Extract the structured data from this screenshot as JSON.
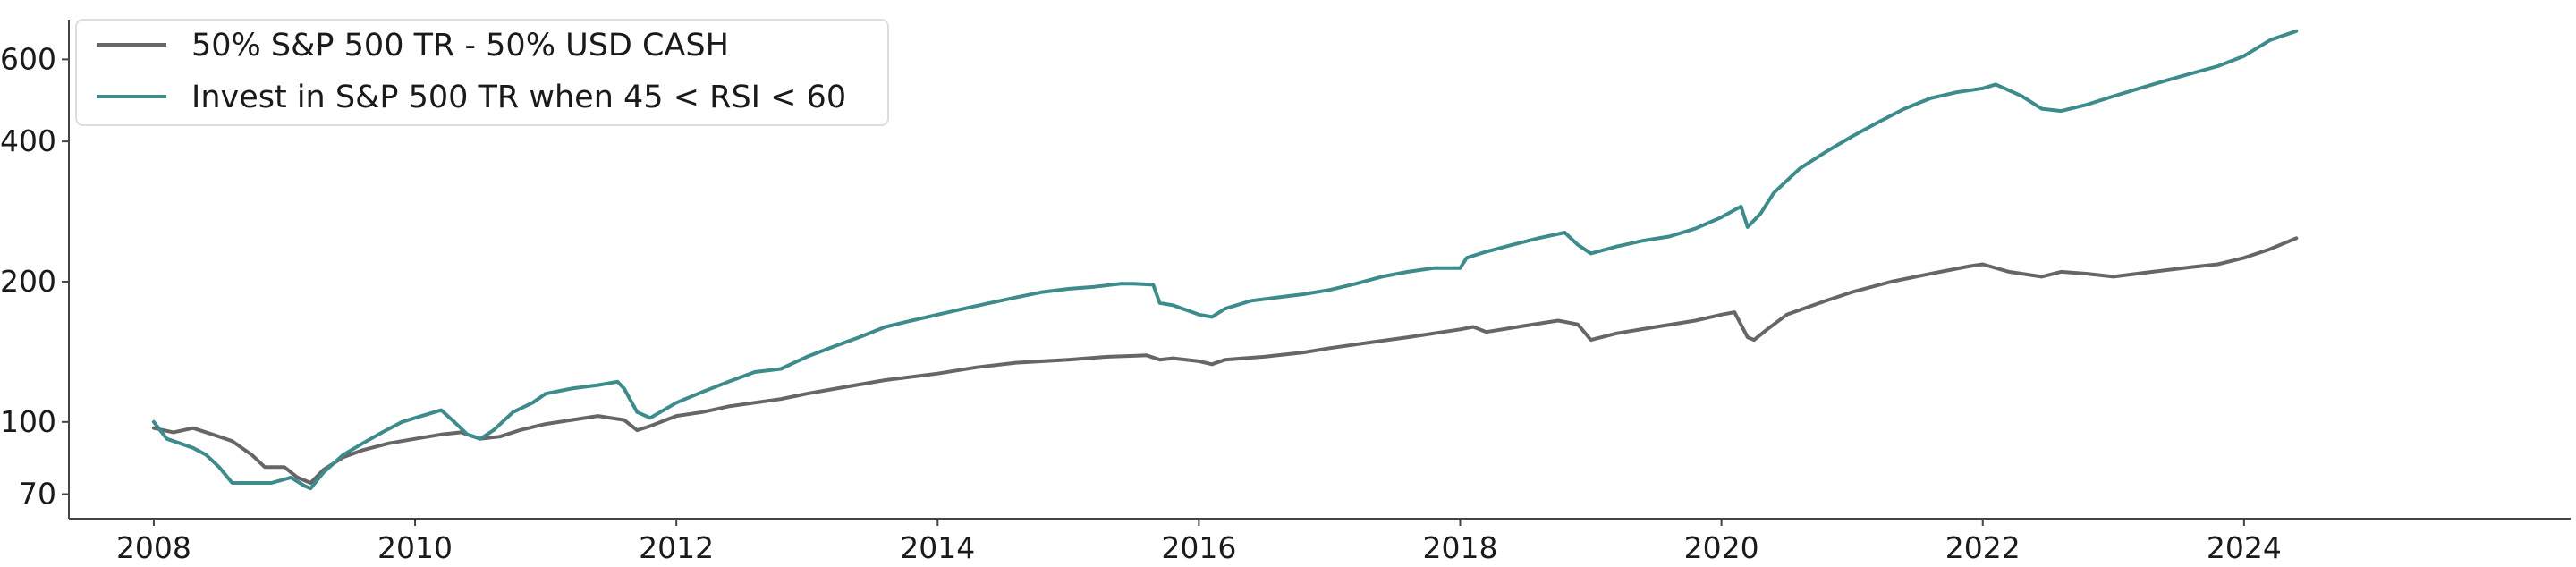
{
  "chart_data": {
    "type": "line",
    "title": "",
    "xlabel": "",
    "ylabel": "",
    "y_scale": "log",
    "xlim": [
      2007.35,
      2026.5
    ],
    "ylim": [
      62,
      730
    ],
    "grid": false,
    "legend_position": "top-left",
    "x_ticks": [
      2008,
      2010,
      2012,
      2014,
      2016,
      2018,
      2020,
      2022,
      2024
    ],
    "x_tick_labels": [
      "2008",
      "2010",
      "2012",
      "2014",
      "2016",
      "2018",
      "2020",
      "2022",
      "2024"
    ],
    "y_ticks": [
      70,
      100,
      200,
      400,
      600
    ],
    "y_tick_labels": [
      "70",
      "100",
      "200",
      "400",
      "600"
    ],
    "series": [
      {
        "name": "50% S&P 500 TR - 50% USD CASH",
        "color": "#666666",
        "x": [
          2008.0,
          2008.15,
          2008.3,
          2008.45,
          2008.6,
          2008.75,
          2008.85,
          2009.0,
          2009.1,
          2009.2,
          2009.3,
          2009.45,
          2009.6,
          2009.8,
          2010.0,
          2010.2,
          2010.35,
          2010.5,
          2010.65,
          2010.8,
          2011.0,
          2011.2,
          2011.4,
          2011.6,
          2011.7,
          2011.8,
          2012.0,
          2012.2,
          2012.4,
          2012.6,
          2012.8,
          2013.0,
          2013.3,
          2013.6,
          2014.0,
          2014.3,
          2014.6,
          2015.0,
          2015.3,
          2015.6,
          2015.7,
          2015.8,
          2016.0,
          2016.1,
          2016.2,
          2016.5,
          2016.8,
          2017.0,
          2017.3,
          2017.6,
          2018.0,
          2018.1,
          2018.2,
          2018.5,
          2018.75,
          2018.9,
          2019.0,
          2019.2,
          2019.5,
          2019.8,
          2020.0,
          2020.1,
          2020.2,
          2020.25,
          2020.35,
          2020.5,
          2020.8,
          2021.0,
          2021.3,
          2021.6,
          2021.9,
          2022.0,
          2022.2,
          2022.45,
          2022.6,
          2022.8,
          2023.0,
          2023.3,
          2023.6,
          2023.8,
          2024.0,
          2024.2,
          2024.4
        ],
        "values": [
          97,
          95,
          97,
          94,
          91,
          85,
          80,
          80,
          76,
          74,
          79,
          84,
          87,
          90,
          92,
          94,
          95,
          92,
          93,
          96,
          99,
          101,
          103,
          101,
          96,
          98,
          103,
          105,
          108,
          110,
          112,
          115,
          119,
          123,
          127,
          131,
          134,
          136,
          138,
          139,
          136,
          137,
          135,
          133,
          136,
          138,
          141,
          144,
          148,
          152,
          158,
          160,
          156,
          161,
          165,
          162,
          150,
          155,
          160,
          165,
          170,
          172,
          152,
          150,
          158,
          170,
          182,
          190,
          200,
          208,
          216,
          218,
          210,
          205,
          210,
          208,
          205,
          210,
          215,
          218,
          225,
          235,
          248
        ]
      },
      {
        "name": "Invest in S&P 500 TR when 45 < RSI < 60",
        "color": "#3d8b8c",
        "x": [
          2008.0,
          2008.1,
          2008.2,
          2008.3,
          2008.4,
          2008.5,
          2008.6,
          2008.75,
          2008.9,
          2009.05,
          2009.15,
          2009.2,
          2009.3,
          2009.45,
          2009.6,
          2009.75,
          2009.9,
          2010.0,
          2010.2,
          2010.3,
          2010.4,
          2010.5,
          2010.6,
          2010.75,
          2010.9,
          2011.0,
          2011.2,
          2011.4,
          2011.55,
          2011.6,
          2011.7,
          2011.8,
          2012.0,
          2012.2,
          2012.4,
          2012.6,
          2012.8,
          2013.0,
          2013.2,
          2013.4,
          2013.6,
          2013.8,
          2014.0,
          2014.2,
          2014.4,
          2014.6,
          2014.8,
          2015.0,
          2015.2,
          2015.4,
          2015.5,
          2015.65,
          2015.7,
          2015.8,
          2016.0,
          2016.1,
          2016.2,
          2016.4,
          2016.6,
          2016.8,
          2017.0,
          2017.2,
          2017.4,
          2017.6,
          2017.8,
          2018.0,
          2018.05,
          2018.2,
          2018.4,
          2018.6,
          2018.8,
          2018.9,
          2019.0,
          2019.2,
          2019.4,
          2019.6,
          2019.8,
          2020.0,
          2020.1,
          2020.15,
          2020.2,
          2020.3,
          2020.4,
          2020.6,
          2020.8,
          2021.0,
          2021.2,
          2021.4,
          2021.6,
          2021.8,
          2022.0,
          2022.1,
          2022.3,
          2022.45,
          2022.6,
          2022.8,
          2023.0,
          2023.2,
          2023.4,
          2023.6,
          2023.8,
          2024.0,
          2024.2,
          2024.4
        ],
        "values": [
          100,
          92,
          90,
          88,
          85,
          80,
          74,
          74,
          74,
          76,
          73,
          72,
          78,
          85,
          90,
          95,
          100,
          102,
          106,
          100,
          94,
          92,
          96,
          105,
          110,
          115,
          118,
          120,
          122,
          118,
          105,
          102,
          110,
          116,
          122,
          128,
          130,
          138,
          145,
          152,
          160,
          165,
          170,
          175,
          180,
          185,
          190,
          193,
          195,
          198,
          198,
          197,
          180,
          178,
          170,
          168,
          175,
          182,
          185,
          188,
          192,
          198,
          205,
          210,
          214,
          214,
          225,
          232,
          240,
          248,
          255,
          240,
          230,
          238,
          245,
          250,
          260,
          275,
          285,
          290,
          262,
          280,
          310,
          350,
          380,
          410,
          440,
          470,
          495,
          510,
          520,
          530,
          500,
          470,
          465,
          480,
          500,
          520,
          540,
          560,
          580,
          610,
          660,
          690
        ]
      }
    ]
  }
}
